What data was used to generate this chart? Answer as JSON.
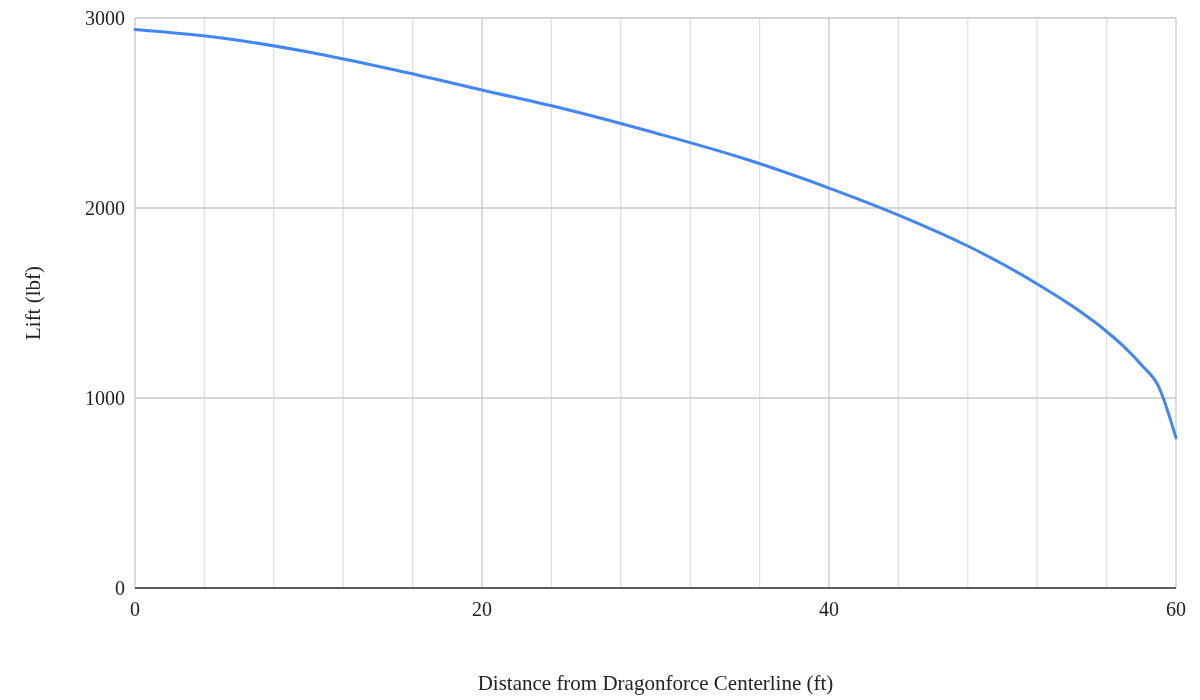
{
  "chart_data": {
    "type": "line",
    "xlabel": "Distance from Dragonforce Centerline (ft)",
    "ylabel": "Lift (lbf)",
    "x": [
      0,
      5,
      10,
      15,
      20,
      25,
      30,
      35,
      40,
      44,
      48,
      50,
      52,
      54,
      56,
      57,
      58,
      59,
      60
    ],
    "series": [
      {
        "color": "#4285f4",
        "values": [
          2940,
          2895,
          2821,
          2726,
          2621,
          2516,
          2395,
          2263,
          2105,
          1963,
          1800,
          1705,
          1600,
          1485,
          1350,
          1270,
          1175,
          1060,
          790
        ]
      }
    ],
    "xlim": [
      0,
      60
    ],
    "ylim": [
      0,
      3000
    ],
    "xticks": [
      0,
      {
        "value": 4,
        "label": null
      },
      {
        "value": 8,
        "label": null
      },
      {
        "value": 12,
        "label": null
      },
      {
        "value": 16,
        "label": null
      },
      20,
      {
        "value": 24,
        "label": null
      },
      {
        "value": 28,
        "label": null
      },
      {
        "value": 32,
        "label": null
      },
      {
        "value": 36,
        "label": null
      },
      40,
      {
        "value": 44,
        "label": null
      },
      {
        "value": 48,
        "label": null
      },
      {
        "value": 52,
        "label": null
      },
      {
        "value": 56,
        "label": null
      },
      60
    ],
    "yticks": [
      0,
      1000,
      2000,
      3000
    ],
    "grid": true,
    "marker": "none",
    "line_style": "solid"
  }
}
